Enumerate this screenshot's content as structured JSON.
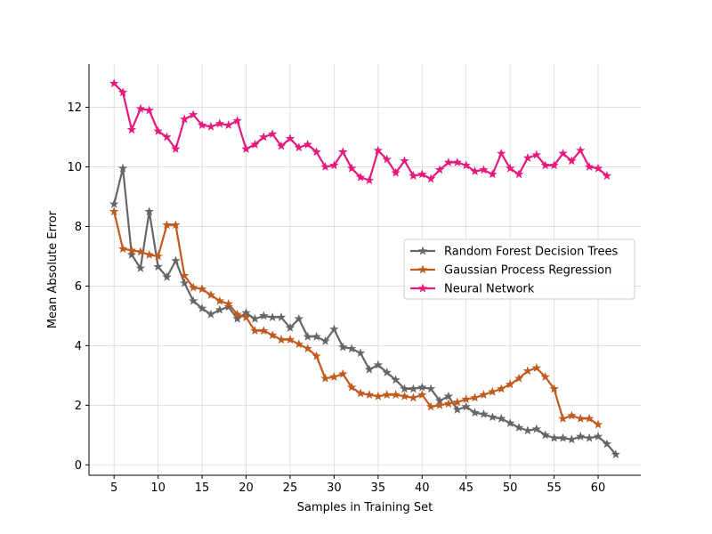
{
  "chart_data": {
    "type": "line",
    "title": "",
    "xlabel": "Samples in Training Set",
    "ylabel": "Mean Absolute Error",
    "xlim": [
      2.15,
      64.85
    ],
    "ylim": [
      -0.35,
      13.45
    ],
    "xticks": [
      5,
      10,
      15,
      20,
      25,
      30,
      35,
      40,
      45,
      50,
      55,
      60
    ],
    "yticks": [
      0,
      2,
      4,
      6,
      8,
      10,
      12
    ],
    "grid": true,
    "legend_position": "center-right",
    "marker": "star",
    "series": [
      {
        "name": "Random Forest Decision Trees",
        "color": "#666666",
        "x": [
          5,
          6,
          7,
          8,
          9,
          10,
          11,
          12,
          13,
          14,
          15,
          16,
          17,
          18,
          19,
          20,
          21,
          22,
          23,
          24,
          25,
          26,
          27,
          28,
          29,
          30,
          31,
          32,
          33,
          34,
          35,
          36,
          37,
          38,
          39,
          40,
          41,
          42,
          43,
          44,
          45,
          46,
          47,
          48,
          49,
          50,
          51,
          52,
          53,
          54,
          55,
          56,
          57,
          58,
          59,
          60,
          61,
          62
        ],
        "values": [
          8.75,
          9.95,
          7.05,
          6.6,
          8.5,
          6.65,
          6.3,
          6.85,
          6.1,
          5.5,
          5.25,
          5.05,
          5.2,
          5.3,
          4.9,
          5.1,
          4.9,
          5.0,
          4.95,
          4.95,
          4.6,
          4.9,
          4.3,
          4.3,
          4.15,
          4.55,
          3.95,
          3.9,
          3.75,
          3.2,
          3.35,
          3.1,
          2.85,
          2.55,
          2.55,
          2.6,
          2.55,
          2.15,
          2.3,
          1.85,
          1.95,
          1.75,
          1.7,
          1.6,
          1.55,
          1.4,
          1.25,
          1.15,
          1.2,
          1.0,
          0.9,
          0.9,
          0.85,
          0.95,
          0.9,
          0.95,
          0.7,
          0.35
        ]
      },
      {
        "name": "Gaussian Process Regression",
        "color": "#c15a1e",
        "x": [
          5,
          6,
          7,
          8,
          9,
          10,
          11,
          12,
          13,
          14,
          15,
          16,
          17,
          18,
          19,
          20,
          21,
          22,
          23,
          24,
          25,
          26,
          27,
          28,
          29,
          30,
          31,
          32,
          33,
          34,
          35,
          36,
          37,
          38,
          39,
          40,
          41,
          42,
          43,
          44,
          45,
          46,
          47,
          48,
          49,
          50,
          51,
          52,
          53,
          54,
          55,
          56,
          57,
          58,
          59,
          60
        ],
        "values": [
          8.5,
          7.25,
          7.2,
          7.15,
          7.05,
          7.0,
          8.05,
          8.05,
          6.35,
          5.95,
          5.9,
          5.7,
          5.5,
          5.4,
          5.05,
          4.95,
          4.5,
          4.5,
          4.35,
          4.2,
          4.2,
          4.05,
          3.9,
          3.65,
          2.9,
          2.95,
          3.05,
          2.6,
          2.4,
          2.35,
          2.3,
          2.35,
          2.35,
          2.3,
          2.25,
          2.35,
          1.95,
          2.0,
          2.05,
          2.1,
          2.2,
          2.25,
          2.35,
          2.45,
          2.55,
          2.7,
          2.9,
          3.15,
          3.25,
          2.95,
          2.55,
          1.55,
          1.65,
          1.55,
          1.55,
          1.35
        ]
      },
      {
        "name": "Neural Network",
        "color": "#e6197d",
        "x": [
          5,
          6,
          7,
          8,
          9,
          10,
          11,
          12,
          13,
          14,
          15,
          16,
          17,
          18,
          19,
          20,
          21,
          22,
          23,
          24,
          25,
          26,
          27,
          28,
          29,
          30,
          31,
          32,
          33,
          34,
          35,
          36,
          37,
          38,
          39,
          40,
          41,
          42,
          43,
          44,
          45,
          46,
          47,
          48,
          49,
          50,
          51,
          52,
          53,
          54,
          55,
          56,
          57,
          58,
          59,
          60,
          61
        ],
        "values": [
          12.8,
          12.5,
          11.25,
          11.95,
          11.9,
          11.2,
          11.0,
          10.6,
          11.6,
          11.75,
          11.4,
          11.35,
          11.45,
          11.4,
          11.55,
          10.6,
          10.75,
          11.0,
          11.1,
          10.7,
          10.95,
          10.65,
          10.75,
          10.5,
          10.0,
          10.05,
          10.5,
          9.95,
          9.65,
          9.55,
          10.55,
          10.25,
          9.8,
          10.2,
          9.7,
          9.75,
          9.6,
          9.9,
          10.15,
          10.15,
          10.05,
          9.85,
          9.9,
          9.75,
          10.45,
          9.95,
          9.75,
          10.3,
          10.4,
          10.05,
          10.05,
          10.45,
          10.2,
          10.55,
          10.0,
          9.95,
          9.7
        ]
      }
    ]
  }
}
